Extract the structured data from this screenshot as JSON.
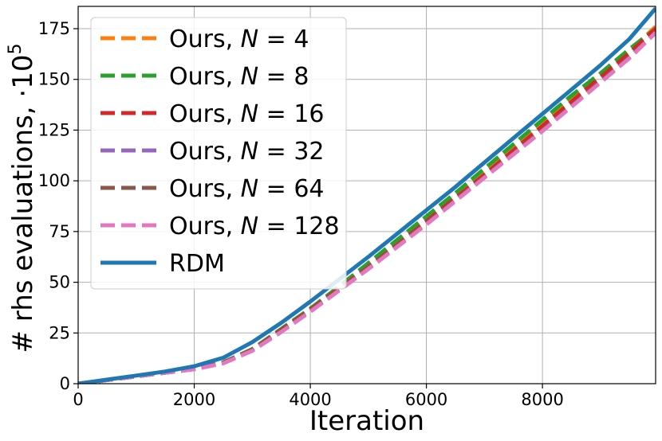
{
  "chart_data": {
    "type": "line",
    "title": "",
    "xlabel": "Iteration",
    "ylabel_main": "# rhs evaluations, ·10",
    "ylabel_exp": "5",
    "xlim": [
      0,
      9950
    ],
    "ylim": [
      0,
      186
    ],
    "xticks": [
      0,
      2000,
      4000,
      6000,
      8000
    ],
    "yticks": [
      0,
      25,
      50,
      75,
      100,
      125,
      150,
      175
    ],
    "grid": true,
    "legend_position": "top-left",
    "series": [
      {
        "name": "Ours, N = 4",
        "label_prefix": "Ours, ",
        "label_var": "N",
        "label_suffix": " = 4",
        "color": "#ff7f0e",
        "style": "dashed",
        "x": [
          0,
          500,
          1000,
          1500,
          2000,
          2500,
          3000,
          3500,
          4000,
          4500,
          5000,
          5500,
          6000,
          6500,
          7000,
          7500,
          8000,
          8500,
          9000,
          9500,
          9950
        ],
        "y": [
          0,
          1.8,
          3.6,
          5.4,
          7.3,
          10.5,
          17,
          27,
          37,
          47.5,
          58.5,
          69.5,
          81,
          92.5,
          104,
          116,
          128,
          140,
          152,
          164,
          176
        ]
      },
      {
        "name": "Ours, N = 8",
        "label_prefix": "Ours, ",
        "label_var": "N",
        "label_suffix": " = 8",
        "color": "#2ca02c",
        "style": "dashed",
        "x": [
          0,
          500,
          1000,
          1500,
          2000,
          2500,
          3000,
          3500,
          4000,
          4500,
          5000,
          5500,
          6000,
          6500,
          7000,
          7500,
          8000,
          8500,
          9000,
          9500,
          9950
        ],
        "y": [
          0,
          1.8,
          3.6,
          5.4,
          7.3,
          10.5,
          17,
          27,
          37,
          48,
          59.5,
          71,
          82.5,
          94,
          106,
          118,
          130,
          142,
          153,
          165,
          175
        ]
      },
      {
        "name": "Ours, N = 16",
        "label_prefix": "Ours, ",
        "label_var": "N",
        "label_suffix": " = 16",
        "color": "#d62728",
        "style": "dashed",
        "x": [
          0,
          500,
          1000,
          1500,
          2000,
          2500,
          3000,
          3500,
          4000,
          4500,
          5000,
          5500,
          6000,
          6500,
          7000,
          7500,
          8000,
          8500,
          9000,
          9500,
          9950
        ],
        "y": [
          0,
          1.8,
          3.6,
          5.4,
          7.2,
          10.3,
          16.7,
          26.5,
          36.5,
          47,
          57.5,
          68.5,
          80,
          91.5,
          103,
          115,
          127,
          139,
          151,
          163,
          175
        ]
      },
      {
        "name": "Ours, N = 32",
        "label_prefix": "Ours, ",
        "label_var": "N",
        "label_suffix": " = 32",
        "color": "#9467bd",
        "style": "dashed",
        "x": [
          0,
          500,
          1000,
          1500,
          2000,
          2500,
          3000,
          3500,
          4000,
          4500,
          5000,
          5500,
          6000,
          6500,
          7000,
          7500,
          8000,
          8500,
          9000,
          9500,
          9950
        ],
        "y": [
          0,
          1.8,
          3.6,
          5.4,
          7.2,
          10.2,
          16.5,
          26,
          36,
          46.5,
          57,
          68,
          79,
          90.5,
          102,
          113.5,
          125,
          137,
          149,
          161,
          173
        ]
      },
      {
        "name": "Ours, N = 64",
        "label_prefix": "Ours, ",
        "label_var": "N",
        "label_suffix": " = 64",
        "color": "#8c564b",
        "style": "dashed",
        "x": [
          0,
          500,
          1000,
          1500,
          2000,
          2500,
          3000,
          3500,
          4000,
          4500,
          5000,
          5500,
          6000,
          6500,
          7000,
          7500,
          8000,
          8500,
          9000,
          9500,
          9950
        ],
        "y": [
          0,
          1.8,
          3.6,
          5.4,
          7.2,
          10.2,
          16.5,
          26,
          36,
          46.5,
          57,
          68,
          79,
          90.5,
          102,
          113.5,
          125,
          137,
          149,
          161,
          173
        ]
      },
      {
        "name": "Ours, N = 128",
        "label_prefix": "Ours, ",
        "label_var": "N",
        "label_suffix": " = 128",
        "color": "#e377c2",
        "style": "dashed",
        "x": [
          0,
          500,
          1000,
          1500,
          2000,
          2500,
          3000,
          3500,
          4000,
          4500,
          5000,
          5500,
          6000,
          6500,
          7000,
          7500,
          8000,
          8500,
          9000,
          9500,
          9950
        ],
        "y": [
          0,
          1.8,
          3.6,
          5.4,
          7.1,
          10,
          16.2,
          25.5,
          35.5,
          46,
          56.5,
          67.5,
          78.5,
          90,
          101.5,
          113,
          124.5,
          136.5,
          148.5,
          160.5,
          173
        ]
      },
      {
        "name": "RDM",
        "color": "#1f77b4",
        "style": "solid",
        "x": [
          0,
          500,
          1000,
          1500,
          2000,
          2500,
          3000,
          3500,
          4000,
          4500,
          5000,
          5500,
          6000,
          6500,
          7000,
          7500,
          8000,
          8500,
          9000,
          9500,
          9950
        ],
        "y": [
          0,
          2,
          4,
          6,
          8.6,
          12.8,
          20.5,
          30,
          40.5,
          51.5,
          62.5,
          74,
          85.5,
          97,
          109,
          121,
          133,
          145,
          157,
          170,
          185
        ]
      }
    ]
  }
}
